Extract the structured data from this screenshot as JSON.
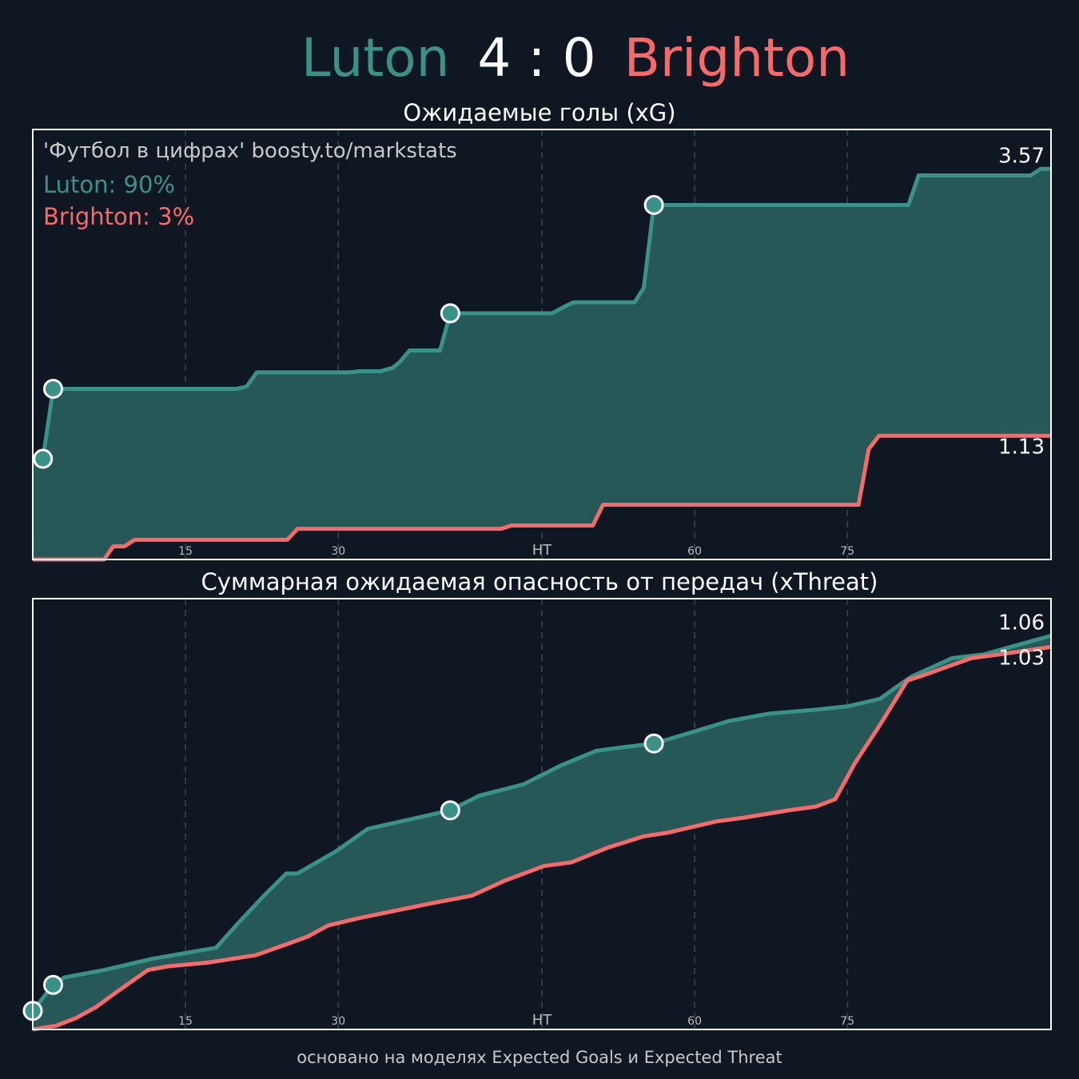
{
  "header": {
    "home": "Luton",
    "score": "4 : 0",
    "away": "Brighton"
  },
  "footer": "основано на моделях Expected Goals и Expected Threat",
  "chart_data": [
    {
      "type": "line",
      "title": "Ожидаемые голы (xG)",
      "annotation": "'Футбол в цифрах' boosty.to/markstats",
      "xlim": [
        0,
        100
      ],
      "xticks": [
        15,
        30,
        {
          "value": 50,
          "label": "HT"
        },
        {
          "value": 65,
          "label": "60"
        },
        {
          "value": 80,
          "label": "75"
        }
      ],
      "ylim": [
        0,
        3.93
      ],
      "grid": true,
      "fill_between": "#265858",
      "series": [
        {
          "name": "Luton: 90%",
          "color": "#3a9188",
          "x": [
            0,
            1,
            2,
            20,
            21,
            22,
            31.1,
            32.1,
            34.1,
            35.3,
            36,
            37,
            40,
            41,
            51,
            52.2,
            53.1,
            59.1,
            60,
            61,
            86,
            87,
            98,
            99,
            100
          ],
          "values": [
            0.92,
            0.92,
            1.56,
            1.56,
            1.58,
            1.71,
            1.71,
            1.72,
            1.72,
            1.75,
            1.8,
            1.91,
            1.91,
            2.25,
            2.25,
            2.31,
            2.35,
            2.35,
            2.48,
            3.24,
            3.24,
            3.51,
            3.51,
            3.57,
            3.57
          ]
        },
        {
          "name": "Brighton: 3%",
          "color": "#f8696b",
          "x": [
            0,
            7,
            7.9,
            9,
            10,
            25,
            26,
            46,
            47,
            55,
            56,
            81.1,
            82.1,
            83.1,
            100
          ],
          "values": [
            0,
            0,
            0.12,
            0.12,
            0.18,
            0.18,
            0.28,
            0.28,
            0.31,
            0.31,
            0.5,
            0.5,
            1.01,
            1.13,
            1.13
          ]
        }
      ],
      "goals": {
        "x": [
          1,
          2,
          41,
          61
        ],
        "y": [
          0.92,
          1.56,
          2.25,
          3.24
        ]
      }
    },
    {
      "type": "line",
      "title": "Суммарная ожидаемая опасность от передач (xThreat)",
      "xlim": [
        0,
        100
      ],
      "xticks": [
        15,
        30,
        {
          "value": 50,
          "label": "HT"
        },
        {
          "value": 65,
          "label": "60"
        },
        {
          "value": 80,
          "label": "75"
        }
      ],
      "ylim": [
        0,
        1.16
      ],
      "grid": true,
      "fill_between": "#265858",
      "series": [
        {
          "color": "#3a9188",
          "x": [
            0,
            2,
            3.1,
            7,
            11.7,
            18,
            20.3,
            22.7,
            24.9,
            26,
            29.8,
            32.9,
            34.5,
            41,
            43.9,
            48.2,
            51.8,
            55.3,
            58,
            61,
            64.7,
            68.3,
            72.2,
            76.5,
            80,
            83.2,
            84.7,
            86.3,
            90.3,
            93.4,
            100
          ],
          "values": [
            0.05,
            0.12,
            0.14,
            0.16,
            0.19,
            0.22,
            0.29,
            0.36,
            0.42,
            0.42,
            0.48,
            0.54,
            0.55,
            0.59,
            0.63,
            0.66,
            0.71,
            0.75,
            0.76,
            0.77,
            0.8,
            0.83,
            0.85,
            0.86,
            0.87,
            0.89,
            0.92,
            0.95,
            1.0,
            1.01,
            1.06
          ]
        },
        {
          "color": "#f8696b",
          "x": [
            0,
            2.3,
            4.2,
            6.2,
            8.2,
            11.3,
            13.3,
            17.2,
            21.9,
            25,
            27,
            29,
            32.1,
            39.2,
            43.1,
            46.3,
            50.2,
            52.9,
            56.5,
            60,
            62.4,
            67.1,
            69.8,
            74.2,
            76.9,
            78.8,
            80.8,
            83.2,
            85.9,
            87.1,
            92.2,
            95,
            100
          ],
          "values": [
            0,
            0.01,
            0.03,
            0.06,
            0.1,
            0.16,
            0.17,
            0.18,
            0.2,
            0.23,
            0.25,
            0.28,
            0.3,
            0.34,
            0.36,
            0.4,
            0.44,
            0.45,
            0.49,
            0.52,
            0.53,
            0.56,
            0.57,
            0.59,
            0.6,
            0.62,
            0.72,
            0.82,
            0.94,
            0.95,
            1.0,
            1.01,
            1.03
          ]
        }
      ],
      "goals": {
        "x": [
          0,
          2,
          41,
          61
        ],
        "y": [
          0.05,
          0.12,
          0.59,
          0.77
        ]
      }
    }
  ]
}
